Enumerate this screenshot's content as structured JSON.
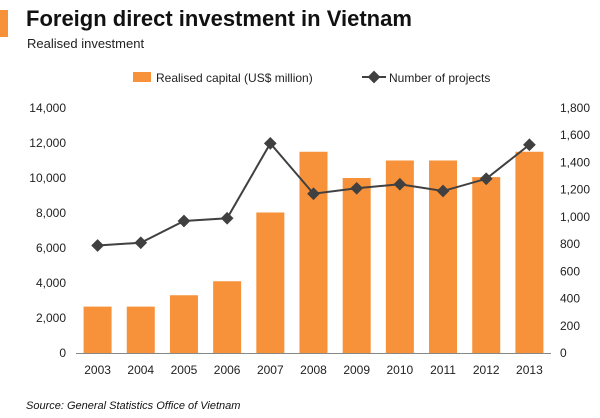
{
  "title": "Foreign direct investment in Vietnam",
  "subtitle": "Realised investment",
  "source": "Source: General Statistics Office of Vietnam",
  "colors": {
    "bar": "#f7923a",
    "line": "#404040",
    "accent": "#f7923a"
  },
  "chart_data": {
    "type": "bar",
    "categories": [
      "2003",
      "2004",
      "2005",
      "2006",
      "2007",
      "2008",
      "2009",
      "2010",
      "2011",
      "2012",
      "2013"
    ],
    "series": [
      {
        "name": "Realised capital (US$ million)",
        "type": "bar",
        "axis": "left",
        "values": [
          2650,
          2650,
          3300,
          4100,
          8030,
          11500,
          10000,
          11000,
          11000,
          10050,
          11500
        ]
      },
      {
        "name": "Number of projects",
        "type": "line",
        "axis": "right",
        "values": [
          790,
          810,
          970,
          990,
          1540,
          1170,
          1210,
          1240,
          1190,
          1280,
          1530
        ]
      }
    ],
    "yleft": {
      "lim": [
        0,
        14000
      ],
      "ticks": [
        "0",
        "2,000",
        "4,000",
        "6,000",
        "8,000",
        "10,000",
        "12,000",
        "14,000"
      ]
    },
    "yright": {
      "lim": [
        0,
        1800
      ],
      "ticks": [
        "0",
        "200",
        "400",
        "600",
        "800",
        "1,000",
        "1,200",
        "1,400",
        "1,600",
        "1,800"
      ]
    },
    "legend": "top",
    "grid": false
  }
}
